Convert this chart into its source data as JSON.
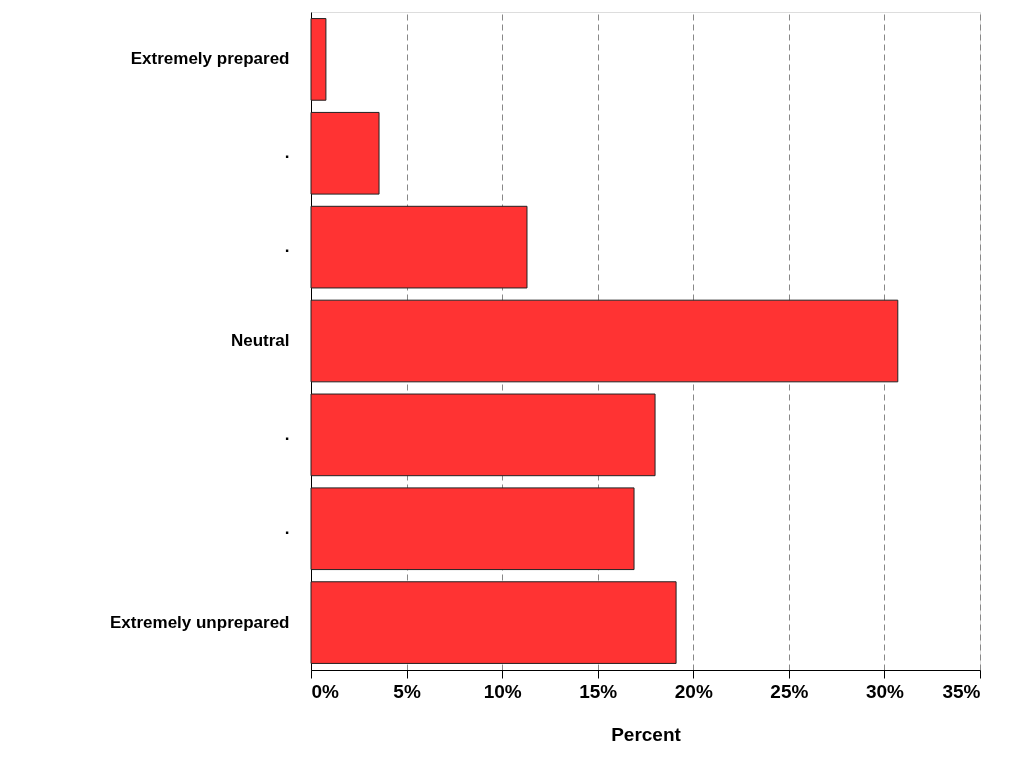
{
  "chart_data": {
    "type": "bar",
    "orientation": "horizontal",
    "categories": [
      "Extremely prepared",
      ".",
      ".",
      "Neutral",
      ".",
      ".",
      "Extremely unprepared"
    ],
    "values": [
      0.78,
      3.56,
      11.3,
      30.7,
      18.0,
      16.9,
      19.1
    ],
    "color": "#ff3333",
    "xlabel": "Percent",
    "xlim": [
      0,
      35
    ],
    "xticks": [
      {
        "value": 0,
        "label": "0%"
      },
      {
        "value": 5,
        "label": "5%"
      },
      {
        "value": 10,
        "label": "10%"
      },
      {
        "value": 15,
        "label": "15%"
      },
      {
        "value": 20,
        "label": "20%"
      },
      {
        "value": 25,
        "label": "25%"
      },
      {
        "value": 30,
        "label": "30%"
      },
      {
        "value": 35,
        "label": "35%"
      }
    ],
    "grid": "x"
  }
}
